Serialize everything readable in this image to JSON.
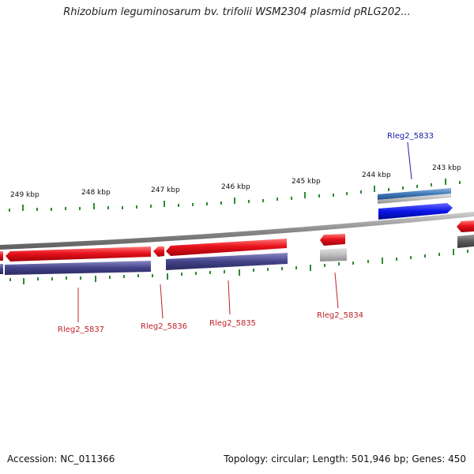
{
  "title": "Rhizobium leguminosarum bv. trifolii WSM2304 plasmid pRLG202...",
  "footer": {
    "accession": "Accession: NC_011366",
    "summary": "Topology: circular; Length: 501,946 bp; Genes: 450"
  },
  "ticks": [
    "249 kbp",
    "248 kbp",
    "247 kbp",
    "246 kbp",
    "245 kbp",
    "244 kbp",
    "243 kbp"
  ],
  "genes": [
    {
      "id": "Rleg2_5837",
      "color": "#c0202a"
    },
    {
      "id": "Rleg2_5836",
      "color": "#c0202a"
    },
    {
      "id": "Rleg2_5835",
      "color": "#c0202a"
    },
    {
      "id": "Rleg2_5834",
      "color": "#c0202a"
    },
    {
      "id": "Rleg2_5833",
      "color": "#1a1aaa"
    }
  ],
  "colors": {
    "reverse_strand": "#e8121c",
    "forward_strand": "#0a14e6",
    "cds_band": "#43438a",
    "tick_mark": "#2e8b2e",
    "backbone": "#8a8a8a"
  }
}
